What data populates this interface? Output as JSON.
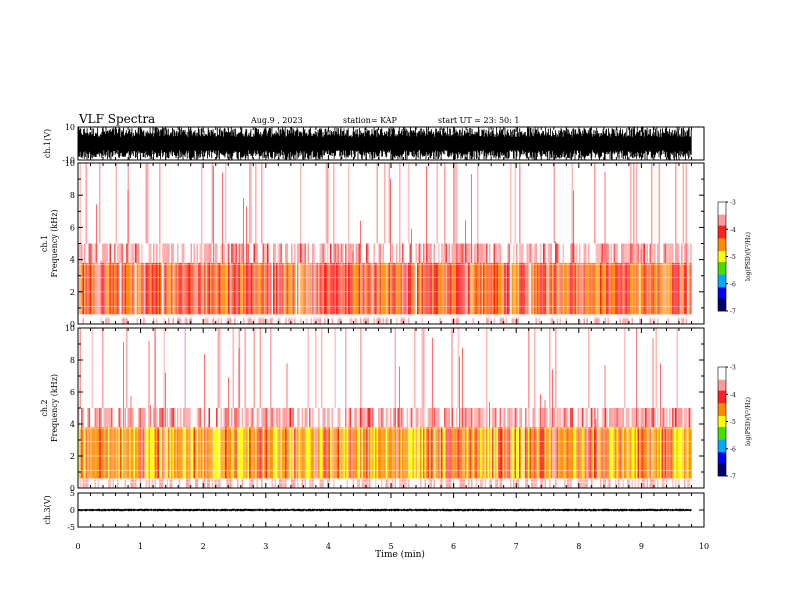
{
  "header": {
    "title": "VLF Spectra",
    "date": "Aug.9 , 2023",
    "station": "station= KAP",
    "start_ut": "start UT = 23: 50: 1"
  },
  "colorbar": {
    "label": "log(PSD)(V²/Hz)",
    "ticks": [
      "-3",
      "-4",
      "-5",
      "-6",
      "-7"
    ],
    "colors": [
      "#ffffff",
      "#ff9a9a",
      "#ff2020",
      "#ff8c00",
      "#ffff00",
      "#44e000",
      "#00a8ff",
      "#0000ff",
      "#000070"
    ]
  },
  "chart_data": [
    {
      "type": "line",
      "name": "ch1 waveform",
      "ylabel": "ch.1(V)",
      "ylim": [
        -10,
        10
      ],
      "yticks": [
        "10",
        "-10"
      ],
      "xlim": [
        0,
        10
      ],
      "description_values": {
        "envelope_min": -10,
        "envelope_max": 10
      }
    },
    {
      "type": "heatmap",
      "name": "ch1 spectrogram",
      "ylabel": "ch.1\nFrequency (kHz)",
      "ylim": [
        0,
        10
      ],
      "yticks": [
        "0",
        "2",
        "4",
        "6",
        "8",
        "10"
      ],
      "xlim": [
        0,
        9.8
      ],
      "zlim": [
        -7,
        -3
      ],
      "bands": [
        {
          "f": [
            0.0,
            0.4
          ],
          "level": -3.3
        },
        {
          "f": [
            0.6,
            3.8
          ],
          "level": -4.3
        },
        {
          "f": [
            3.8,
            5.0
          ],
          "level": -3.6
        },
        {
          "f": [
            5.0,
            10.0
          ],
          "level": -3.1
        }
      ]
    },
    {
      "type": "heatmap",
      "name": "ch2 spectrogram",
      "ylabel": "ch.2\nFrequency (kHz)",
      "ylim": [
        0,
        10
      ],
      "yticks": [
        "0",
        "2",
        "4",
        "6",
        "8",
        "10"
      ],
      "xlim": [
        0,
        9.8
      ],
      "zlim": [
        -7,
        -3
      ],
      "bands": [
        {
          "f": [
            0.0,
            0.6
          ],
          "level": -3.4
        },
        {
          "f": [
            0.6,
            3.8
          ],
          "level": -4.6
        },
        {
          "f": [
            3.8,
            5.0
          ],
          "level": -3.6
        },
        {
          "f": [
            5.0,
            10.0
          ],
          "level": -3.1
        }
      ]
    },
    {
      "type": "line",
      "name": "ch3 waveform",
      "ylabel": "ch.3(V)",
      "ylim": [
        -5,
        5
      ],
      "yticks": [
        "5",
        "0",
        "-5"
      ],
      "xlim": [
        0,
        10
      ],
      "description_values": {
        "envelope_min": -0.4,
        "envelope_max": 0.4
      }
    }
  ],
  "x_axis": {
    "label": "Time (min)",
    "ticks": [
      "0",
      "1",
      "2",
      "3",
      "4",
      "5",
      "6",
      "7",
      "8",
      "9",
      "10"
    ],
    "range": [
      0,
      10
    ],
    "data_end": 9.8
  }
}
